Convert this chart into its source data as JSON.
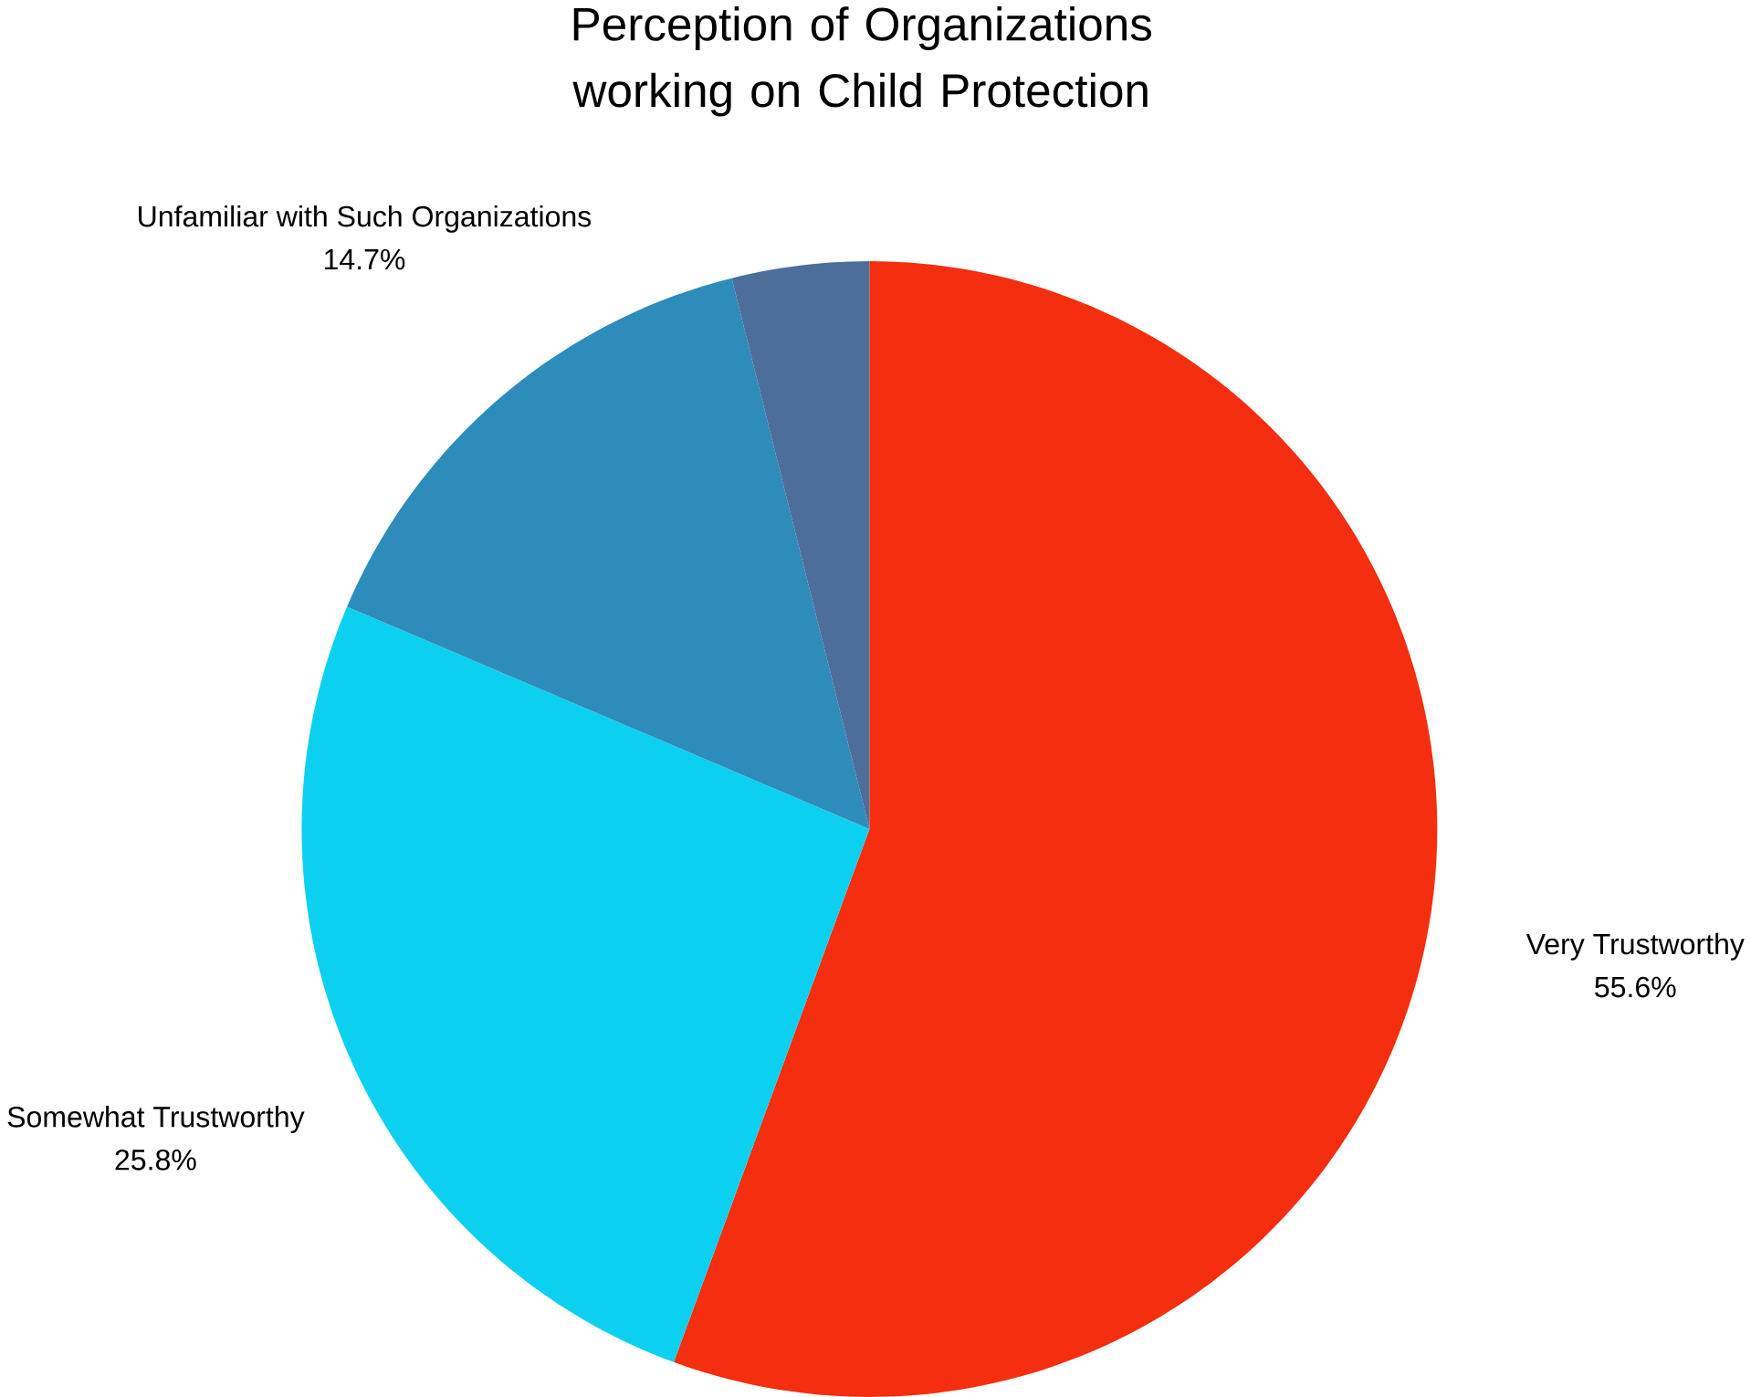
{
  "chart_data": {
    "type": "pie",
    "title": "Perception of Organizations working on Child Protection",
    "categories": [
      "Very Trustworthy",
      "Somewhat Trustworthy",
      "Unfamiliar with Such Organizations",
      null
    ],
    "values": [
      55.6,
      25.8,
      14.7,
      3.9
    ],
    "value_labels": [
      "55.6%",
      "25.8%",
      "14.7%",
      null
    ],
    "colors": [
      "#f42e0e",
      "#0cd0f0",
      "#2d8cba",
      "#4e6e9a"
    ]
  }
}
